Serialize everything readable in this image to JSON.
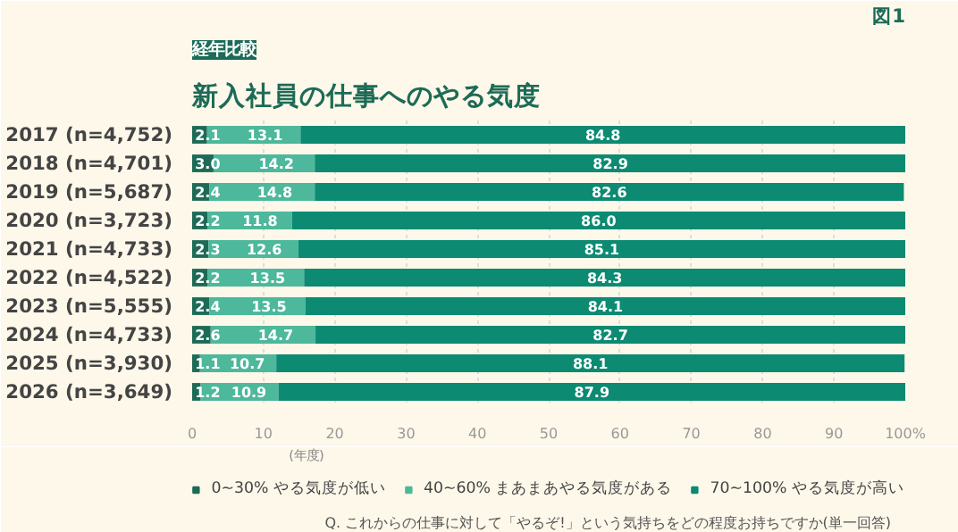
{
  "chart_data": {
    "type": "bar",
    "orientation": "horizontal",
    "stacked": true,
    "title": "新入社員の仕事へのやる気度",
    "subtitle": "経年比較",
    "categories": [
      "2017 (n=4,752)",
      "2018 (n=4,701)",
      "2019 (n=5,687)",
      "2020 (n=3,723)",
      "2021 (n=4,733)",
      "2022 (n=4,522)",
      "2023 (n=5,555)",
      "2024 (n=4,733)",
      "2025 (n=3,930)",
      "2026 (n=3,649)"
    ],
    "series": [
      {
        "name": "0~30% やる気度が低い",
        "color": "#1d6b56",
        "values": [
          2.1,
          3.0,
          2.4,
          2.2,
          2.3,
          2.2,
          2.4,
          2.6,
          1.1,
          1.2
        ],
        "value_labels": [
          "2.1",
          "3.0",
          "2.4",
          "2.2",
          "2.3",
          "2.2",
          "2.4",
          "2.6",
          "1.1",
          "1.2"
        ]
      },
      {
        "name": "40~60% まあまあやる気度がある",
        "color": "#4db89b",
        "values": [
          13.1,
          14.2,
          14.8,
          11.8,
          12.6,
          13.5,
          13.5,
          14.7,
          10.7,
          10.9
        ],
        "value_labels": [
          "13.1",
          "14.2",
          "14.8",
          "11.8",
          "12.6",
          "13.5",
          "13.5",
          "14.7",
          "10.7",
          "10.9"
        ]
      },
      {
        "name": "70~100% やる気度が高い",
        "color": "#0c8a72",
        "values": [
          84.8,
          82.9,
          82.6,
          86.0,
          85.1,
          84.3,
          84.1,
          82.7,
          88.1,
          87.9
        ],
        "value_labels": [
          "84.8",
          "82.9",
          "82.6",
          "86.0",
          "85.1",
          "84.3",
          "84.1",
          "82.7",
          "88.1",
          "87.9"
        ]
      }
    ],
    "xlim": [
      0,
      100
    ],
    "xticks": [
      0,
      10,
      20,
      30,
      40,
      50,
      60,
      70,
      80,
      90,
      {
        "value": 100,
        "label": "100%"
      }
    ],
    "grid": "x",
    "legend": "bottom right",
    "annotations": [
      "図1",
      "(年度)",
      "Q. これからの仕事に対して「やるぞ!」という気持ちをどの程度お持ちですか(単一回答)"
    ]
  }
}
